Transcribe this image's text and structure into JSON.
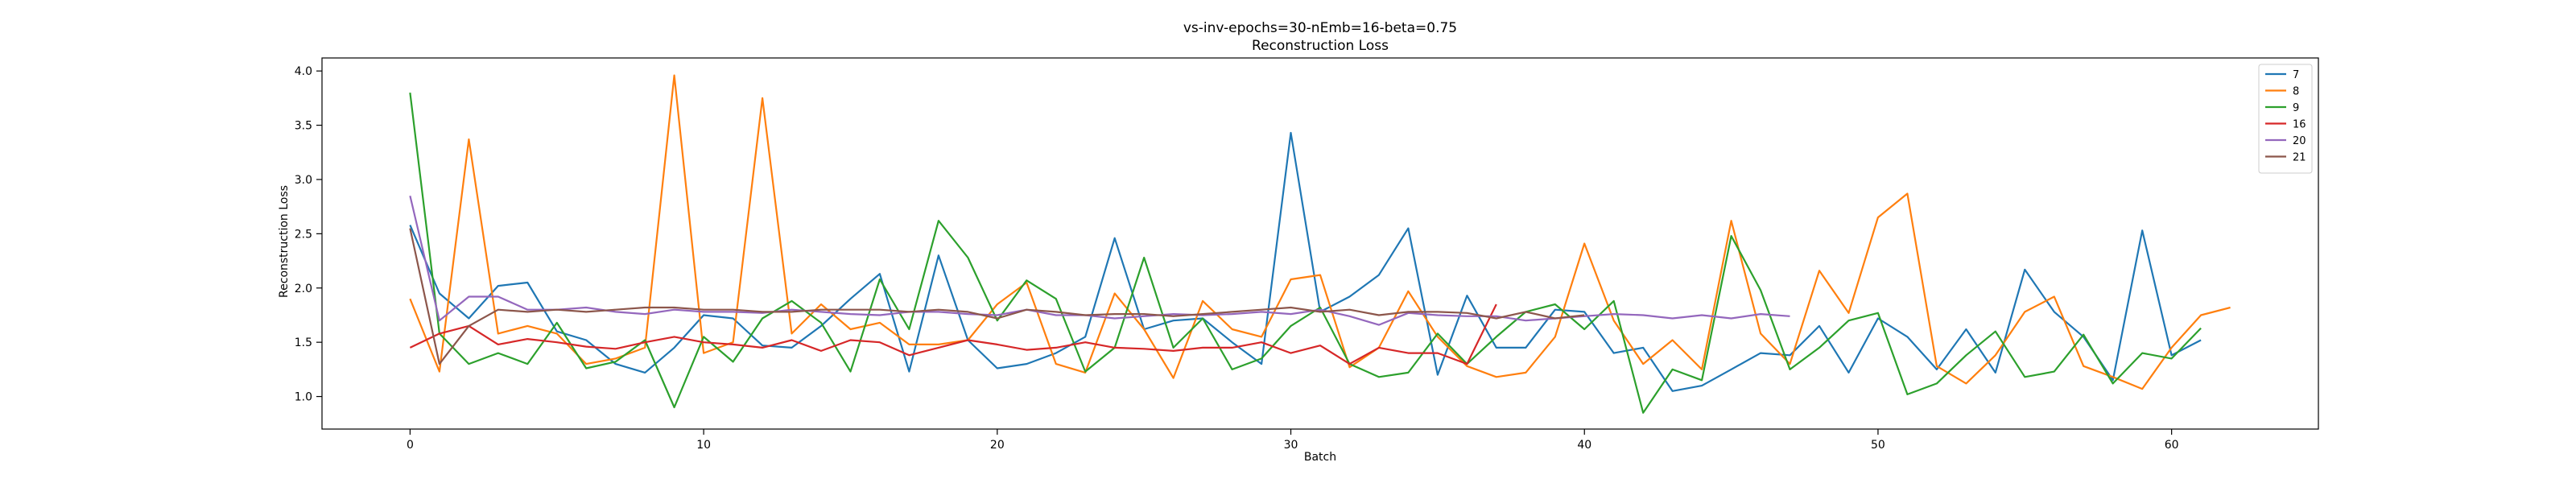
{
  "chart_data": {
    "type": "line",
    "title": "vs-inv-epochs=30-nEmb=16-beta=0.75",
    "subtitle": "Reconstruction Loss",
    "xlabel": "Batch",
    "ylabel": "Reconstruction Loss",
    "xlim": [
      -3,
      65
    ],
    "ylim": [
      0.7,
      4.12
    ],
    "xticks": [
      0,
      10,
      20,
      30,
      40,
      50,
      60
    ],
    "yticks": [
      1.0,
      1.5,
      2.0,
      2.5,
      3.0,
      3.5,
      4.0
    ],
    "ytick_labels": [
      "1.0",
      "1.5",
      "2.0",
      "2.5",
      "3.0",
      "3.5",
      "4.0"
    ],
    "grid": false,
    "legend_position": "top-right",
    "series": [
      {
        "name": "7",
        "color": "#1f77b4",
        "values": [
          2.58,
          1.95,
          1.72,
          2.02,
          2.05,
          1.6,
          1.52,
          1.3,
          1.22,
          1.45,
          1.75,
          1.72,
          1.47,
          1.45,
          1.65,
          1.9,
          2.13,
          1.23,
          2.3,
          1.52,
          1.26,
          1.3,
          1.4,
          1.55,
          2.46,
          1.62,
          1.7,
          1.72,
          1.5,
          1.3,
          3.43,
          1.78,
          1.92,
          2.12,
          2.55,
          1.2,
          1.93,
          1.45,
          1.45,
          1.8,
          1.78,
          1.4,
          1.45,
          1.05,
          1.1,
          1.25,
          1.4,
          1.38,
          1.65,
          1.22,
          1.72,
          1.55,
          1.25,
          1.62,
          1.22,
          2.17,
          1.78,
          1.55,
          1.15,
          2.53,
          1.38,
          1.52
        ]
      },
      {
        "name": "8",
        "color": "#ff7f0e",
        "values": [
          1.9,
          1.23,
          3.37,
          1.58,
          1.65,
          1.58,
          1.3,
          1.35,
          1.45,
          3.96,
          1.4,
          1.5,
          3.75,
          1.58,
          1.85,
          1.62,
          1.68,
          1.48,
          1.48,
          1.52,
          1.85,
          2.05,
          1.3,
          1.22,
          1.95,
          1.62,
          1.17,
          1.88,
          1.62,
          1.55,
          2.08,
          2.12,
          1.27,
          1.45,
          1.97,
          1.55,
          1.28,
          1.18,
          1.22,
          1.55,
          2.41,
          1.7,
          1.3,
          1.52,
          1.25,
          2.62,
          1.58,
          1.3,
          2.16,
          1.77,
          2.65,
          2.87,
          1.28,
          1.12,
          1.38,
          1.78,
          1.92,
          1.28,
          1.18,
          1.07,
          1.45,
          1.75,
          1.82
        ]
      },
      {
        "name": "9",
        "color": "#2ca02c",
        "values": [
          3.8,
          1.58,
          1.3,
          1.4,
          1.3,
          1.68,
          1.26,
          1.32,
          1.52,
          0.9,
          1.55,
          1.32,
          1.72,
          1.88,
          1.68,
          1.23,
          2.08,
          1.62,
          2.62,
          2.28,
          1.7,
          2.07,
          1.9,
          1.23,
          1.45,
          2.28,
          1.45,
          1.72,
          1.25,
          1.35,
          1.65,
          1.82,
          1.3,
          1.18,
          1.22,
          1.58,
          1.3,
          1.55,
          1.78,
          1.85,
          1.62,
          1.88,
          0.85,
          1.25,
          1.15,
          2.48,
          1.98,
          1.25,
          1.45,
          1.7,
          1.77,
          1.02,
          1.12,
          1.38,
          1.6,
          1.18,
          1.23,
          1.57,
          1.12,
          1.4,
          1.35,
          1.63
        ]
      },
      {
        "name": "16",
        "color": "#d62728",
        "values": [
          1.45,
          1.58,
          1.65,
          1.48,
          1.53,
          1.5,
          1.46,
          1.44,
          1.5,
          1.55,
          1.5,
          1.48,
          1.45,
          1.52,
          1.42,
          1.52,
          1.5,
          1.38,
          1.45,
          1.52,
          1.48,
          1.43,
          1.45,
          1.5,
          1.45,
          1.44,
          1.42,
          1.45,
          1.45,
          1.5,
          1.4,
          1.47,
          1.3,
          1.45,
          1.4,
          1.4,
          1.3,
          1.85
        ]
      },
      {
        "name": "20",
        "color": "#9467bd",
        "values": [
          2.85,
          1.7,
          1.92,
          1.92,
          1.8,
          1.8,
          1.82,
          1.78,
          1.76,
          1.8,
          1.78,
          1.78,
          1.77,
          1.8,
          1.78,
          1.76,
          1.75,
          1.78,
          1.78,
          1.76,
          1.75,
          1.8,
          1.75,
          1.75,
          1.72,
          1.74,
          1.76,
          1.75,
          1.76,
          1.78,
          1.76,
          1.8,
          1.74,
          1.66,
          1.77,
          1.75,
          1.74,
          1.74,
          1.7,
          1.72,
          1.74,
          1.76,
          1.75,
          1.72,
          1.75,
          1.72,
          1.76,
          1.74
        ]
      },
      {
        "name": "21",
        "color": "#8c564b",
        "values": [
          2.55,
          1.3,
          1.65,
          1.8,
          1.78,
          1.8,
          1.78,
          1.8,
          1.82,
          1.82,
          1.8,
          1.8,
          1.78,
          1.78,
          1.8,
          1.8,
          1.8,
          1.78,
          1.8,
          1.78,
          1.72,
          1.8,
          1.78,
          1.75,
          1.76,
          1.76,
          1.74,
          1.76,
          1.78,
          1.8,
          1.82,
          1.78,
          1.8,
          1.75,
          1.78,
          1.78,
          1.77,
          1.72,
          1.78,
          1.72,
          1.75
        ]
      }
    ]
  }
}
